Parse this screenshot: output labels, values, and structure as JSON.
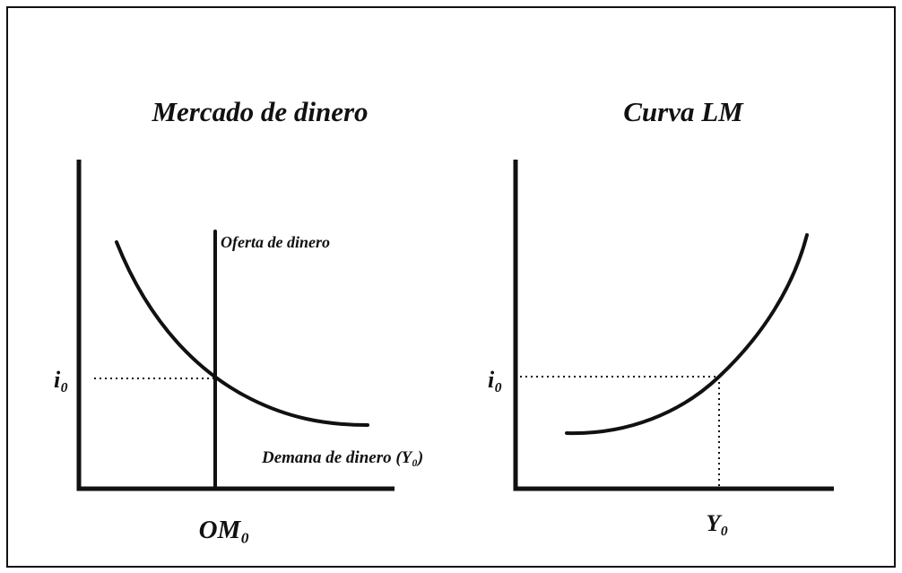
{
  "left": {
    "title": "Mercado de dinero",
    "supply_label": "Oferta de dinero",
    "demand_label": "Demana de dinero (Y₀)",
    "y_label": "i₀",
    "x_label": "OM₀"
  },
  "right": {
    "title": "Curva LM",
    "y_label": "i₀",
    "x_label": "Y₀"
  }
}
